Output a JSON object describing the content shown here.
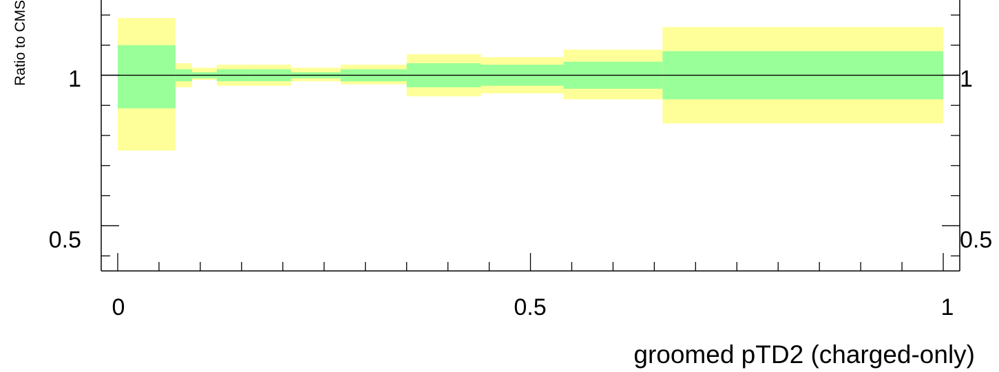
{
  "chart_data": {
    "type": "area",
    "xlabel": "groomed pTD2 (charged-only)",
    "ylabel": "Ratio to CMS",
    "xlim": [
      -0.02,
      1.02
    ],
    "ylim": [
      0.35,
      1.25
    ],
    "x_tick_labels": [
      "0",
      "0.5",
      "1"
    ],
    "y_tick_labels": [
      "0.5",
      "1"
    ],
    "right_y_tick_labels": [
      "0.5",
      "1"
    ],
    "reference_line": 1.0,
    "grid": false,
    "colors": {
      "outer_band": "#ffff99",
      "inner_band": "#99ff99",
      "axis": "#000000"
    },
    "series": [
      {
        "bins": [
          {
            "x0": 0.0,
            "x1": 0.07,
            "outer": [
              0.75,
              1.19
            ],
            "inner": [
              0.89,
              1.1
            ]
          },
          {
            "x0": 0.07,
            "x1": 0.09,
            "outer": [
              0.96,
              1.04
            ],
            "inner": [
              0.98,
              1.02
            ]
          },
          {
            "x0": 0.09,
            "x1": 0.12,
            "outer": [
              0.985,
              1.025
            ],
            "inner": [
              0.99,
              1.01
            ]
          },
          {
            "x0": 0.12,
            "x1": 0.16,
            "outer": [
              0.965,
              1.035
            ],
            "inner": [
              0.98,
              1.02
            ]
          },
          {
            "x0": 0.16,
            "x1": 0.21,
            "outer": [
              0.965,
              1.035
            ],
            "inner": [
              0.98,
              1.02
            ]
          },
          {
            "x0": 0.21,
            "x1": 0.27,
            "outer": [
              0.98,
              1.025
            ],
            "inner": [
              0.99,
              1.01
            ]
          },
          {
            "x0": 0.27,
            "x1": 0.35,
            "outer": [
              0.97,
              1.035
            ],
            "inner": [
              0.98,
              1.02
            ]
          },
          {
            "x0": 0.35,
            "x1": 0.44,
            "outer": [
              0.93,
              1.07
            ],
            "inner": [
              0.96,
              1.04
            ]
          },
          {
            "x0": 0.44,
            "x1": 0.54,
            "outer": [
              0.94,
              1.06
            ],
            "inner": [
              0.965,
              1.035
            ]
          },
          {
            "x0": 0.54,
            "x1": 0.66,
            "outer": [
              0.92,
              1.085
            ],
            "inner": [
              0.955,
              1.045
            ]
          },
          {
            "x0": 0.66,
            "x1": 1.0,
            "outer": [
              0.84,
              1.16
            ],
            "inner": [
              0.92,
              1.08
            ]
          }
        ]
      }
    ]
  }
}
